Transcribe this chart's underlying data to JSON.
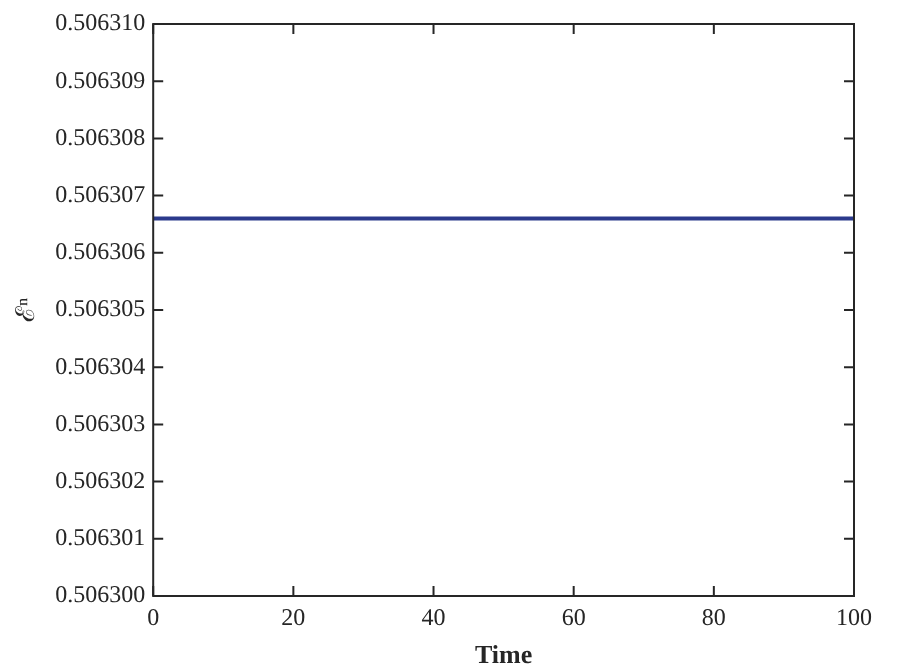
{
  "chart_data": {
    "type": "line",
    "xlabel": "Time",
    "ylabel": "ℰⁿ",
    "x": [
      0,
      100
    ],
    "series": [
      {
        "color": "#2b3a8c",
        "values": [
          0.5063066,
          0.5063066
        ]
      }
    ],
    "xlim": [
      0,
      100
    ],
    "xticks": [
      0,
      20,
      40,
      60,
      80,
      100
    ],
    "ylim": [
      0.5063,
      0.50631
    ],
    "yticks": [
      {
        "value": 0.5063,
        "label": "0.506300"
      },
      0.506301,
      0.506302,
      0.506303,
      0.506304,
      0.506305,
      0.506306,
      0.506307,
      0.506308,
      0.506309,
      {
        "value": 0.50631,
        "label": "0.506310"
      }
    ],
    "grid": false,
    "legend": false,
    "marker": "none",
    "line_style": "solid"
  }
}
